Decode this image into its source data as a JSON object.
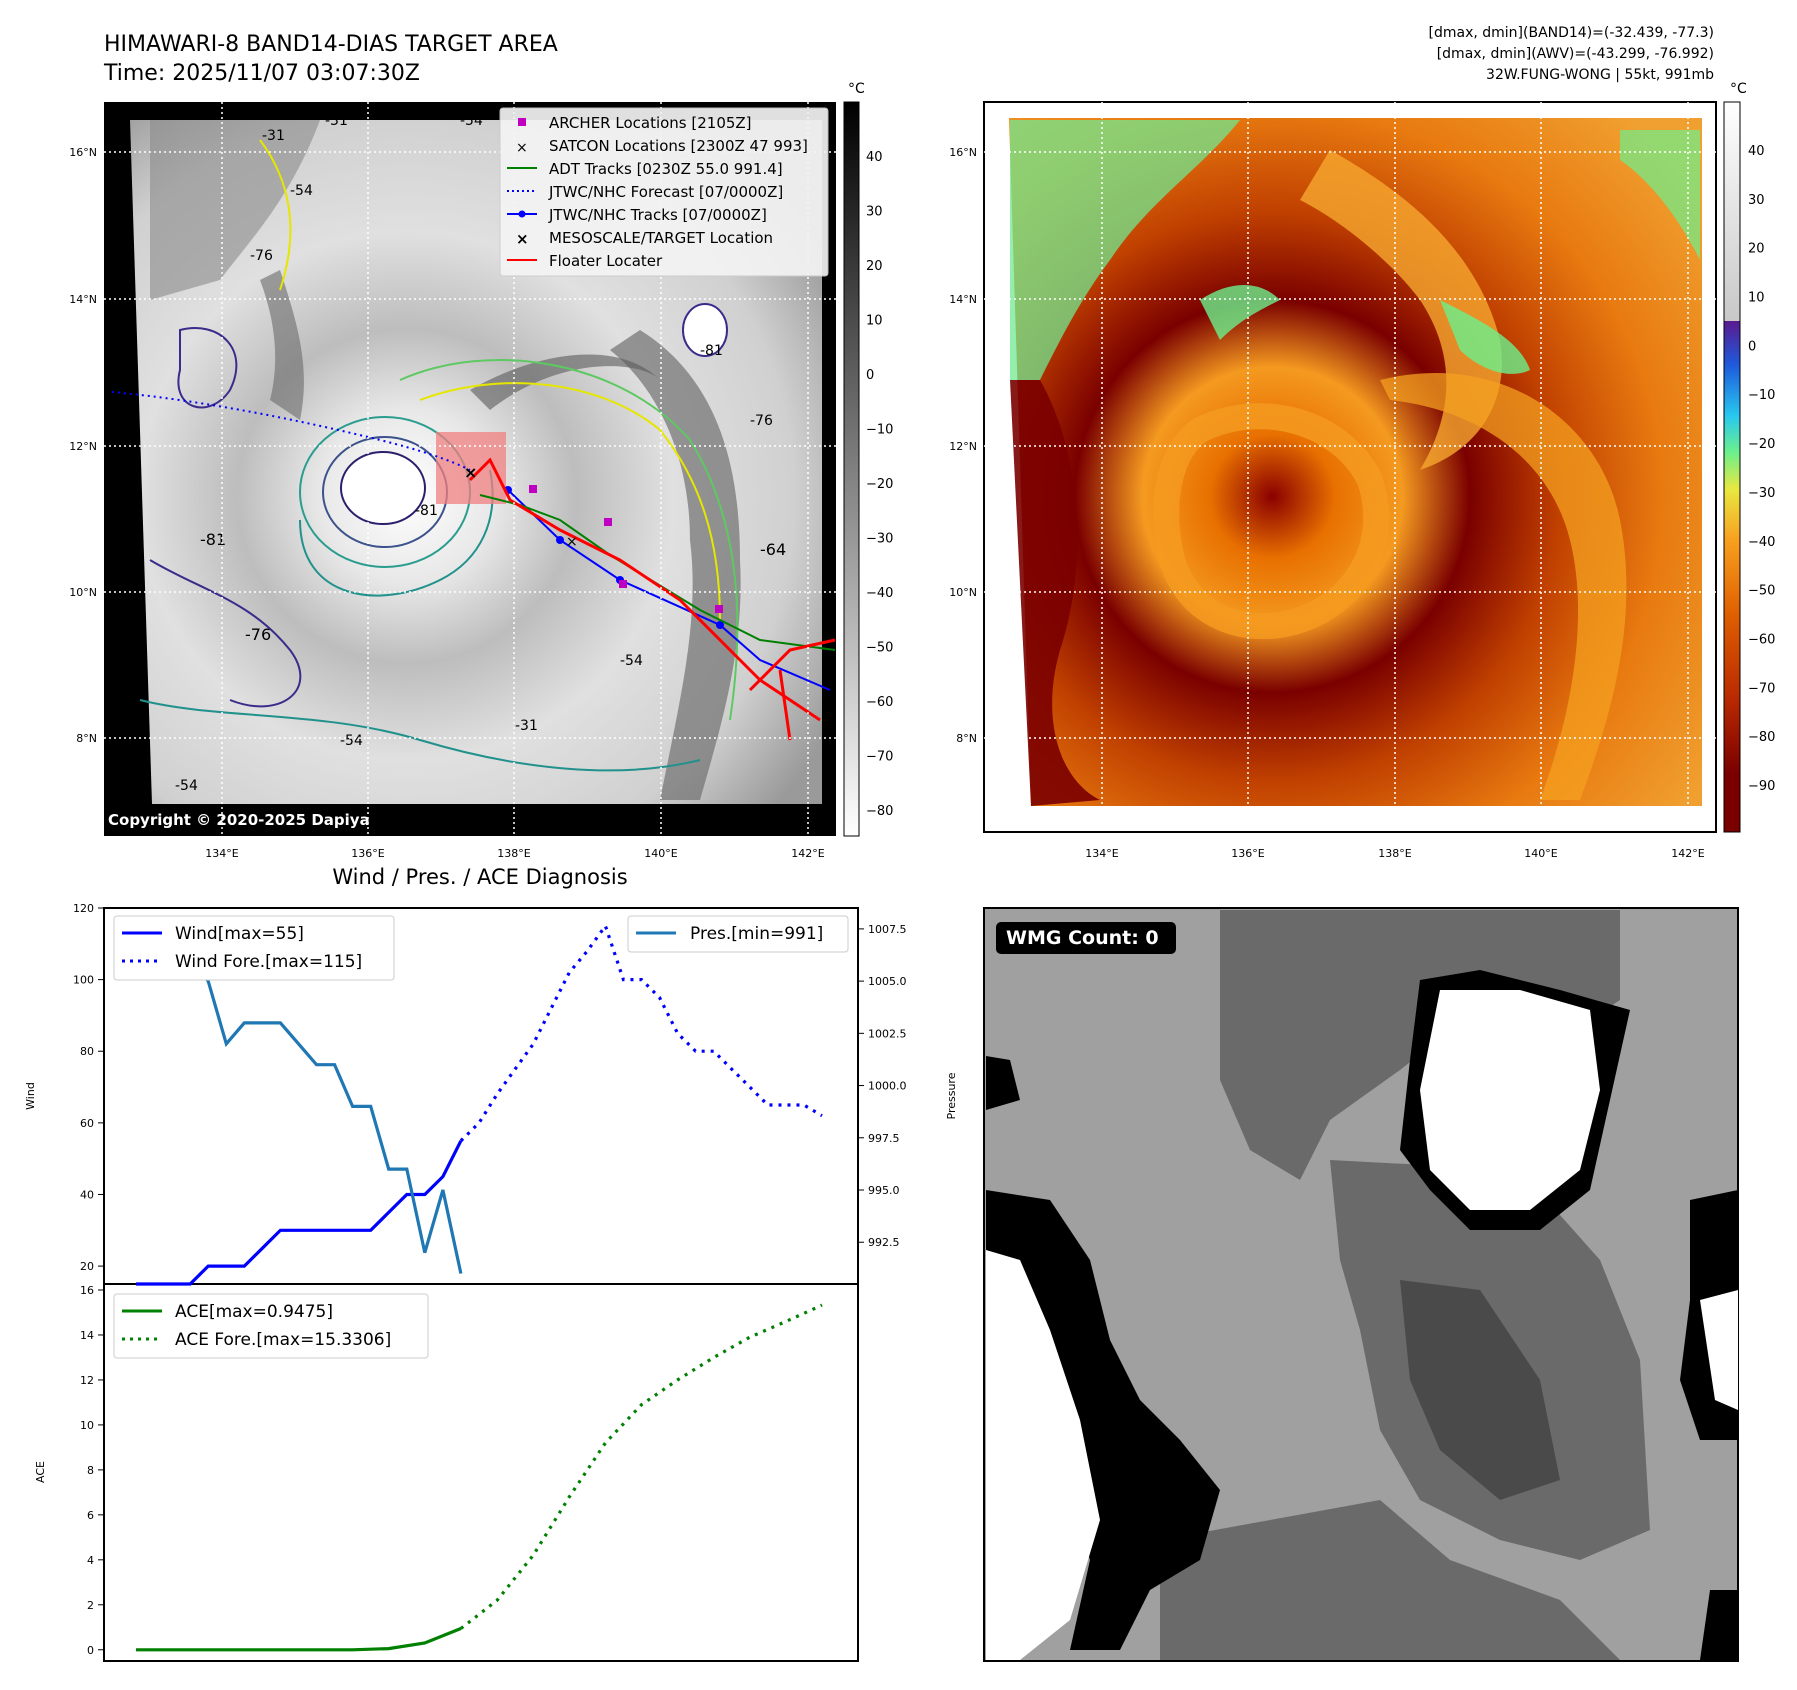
{
  "header": {
    "title_line1": "HIMAWARI-8 BAND14-DIAS TARGET AREA",
    "title_line2": "Time: 2025/11/07 03:07:30Z",
    "info_line1": "[dmax, dmin](BAND14)=(-32.439, -77.3)",
    "info_line2": "[dmax, dmin](AWV)=(-43.299, -76.992)",
    "info_line3": "32W.FUNG-WONG | 55kt, 991mb"
  },
  "map_left": {
    "lat_ticks": [
      "16°N",
      "14°N",
      "12°N",
      "10°N",
      "8°N"
    ],
    "lon_ticks": [
      "134°E",
      "136°E",
      "138°E",
      "140°E",
      "142°E"
    ],
    "colorbar_unit": "°C",
    "colorbar_ticks": [
      "40",
      "30",
      "20",
      "10",
      "0",
      "−10",
      "−20",
      "−30",
      "−40",
      "−50",
      "−60",
      "−70",
      "−80"
    ],
    "copyright": "Copyright © 2020-2025 Dapiya",
    "contour_labels": [
      "-31",
      "-31",
      "-54",
      "-54",
      "-76",
      "-81",
      "-81",
      "-76",
      "-64",
      "-54",
      "-76",
      "-81",
      "-54",
      "-54",
      "-31"
    ],
    "legend": [
      {
        "label": "ARCHER Locations [2105Z]",
        "color": "#c000c0",
        "marker": "square"
      },
      {
        "label": "SATCON Locations [2300Z 47 993]",
        "color": "#00c0c0",
        "marker": "x"
      },
      {
        "label": "ADT Tracks [0230Z 55.0 991.4]",
        "color": "#008000",
        "marker": "line"
      },
      {
        "label": "JTWC/NHC Forecast [07/0000Z]",
        "color": "#0000ff",
        "marker": "dotted"
      },
      {
        "label": "JTWC/NHC Tracks [07/0000Z]",
        "color": "#0000ff",
        "marker": "line-dot"
      },
      {
        "label": "MESOSCALE/TARGET Location",
        "color": "#ff0000",
        "marker": "x"
      },
      {
        "label": "Floater Locater",
        "color": "#ff0000",
        "marker": "line"
      }
    ]
  },
  "map_right": {
    "lat_ticks": [
      "16°N",
      "14°N",
      "12°N",
      "10°N",
      "8°N"
    ],
    "lon_ticks": [
      "134°E",
      "136°E",
      "138°E",
      "140°E",
      "142°E"
    ],
    "colorbar_unit": "°C",
    "colorbar_ticks": [
      "40",
      "30",
      "20",
      "10",
      "0",
      "−10",
      "−20",
      "−30",
      "−40",
      "−50",
      "−60",
      "−70",
      "−80",
      "−90"
    ]
  },
  "wmg": {
    "label": "WMG Count: 0"
  },
  "chart_data": [
    {
      "type": "line",
      "title": "Wind / Pres. / ACE Diagnosis",
      "ylabel": "Wind",
      "ylabel_right": "Pressure",
      "ylim": [
        15,
        120
      ],
      "ylim_right": [
        990.5,
        1008.5
      ],
      "x_index_range": [
        0,
        38
      ],
      "yticks": [
        "120",
        "100",
        "80",
        "60",
        "40",
        "20"
      ],
      "yticks_right": [
        "1007.5",
        "1005.0",
        "1002.5",
        "1000.0",
        "997.5",
        "995.0",
        "992.5"
      ],
      "legend_left": [
        "Wind[max=55]",
        "Wind Fore.[max=115]"
      ],
      "legend_right": [
        "Pres.[min=991]"
      ],
      "series": [
        {
          "name": "Wind[max=55]",
          "axis": "left",
          "color": "#0000ff",
          "style": "solid",
          "x": [
            0,
            1,
            2,
            3,
            4,
            5,
            6,
            7,
            8,
            9,
            10,
            11,
            12,
            13,
            14,
            15,
            16,
            17,
            18
          ],
          "values": [
            15,
            15,
            15,
            15,
            20,
            20,
            20,
            25,
            30,
            30,
            30,
            30,
            30,
            30,
            35,
            40,
            40,
            45,
            55
          ]
        },
        {
          "name": "Wind Fore.[max=115]",
          "axis": "left",
          "color": "#0000ff",
          "style": "dotted",
          "x": [
            18,
            19,
            20,
            21,
            22,
            23,
            24,
            25,
            26,
            27,
            28,
            29,
            30,
            31,
            32,
            33,
            34,
            35,
            36,
            37,
            38
          ],
          "values": [
            55,
            60,
            68,
            75,
            82,
            92,
            102,
            108,
            115,
            100,
            100,
            95,
            85,
            80,
            80,
            75,
            70,
            65,
            65,
            65,
            62
          ]
        },
        {
          "name": "Pres.[min=991]",
          "axis": "right",
          "color": "#1f77b4",
          "style": "solid",
          "x": [
            0,
            1,
            2,
            3,
            4,
            5,
            6,
            7,
            8,
            9,
            10,
            11,
            12,
            13,
            14,
            15,
            16,
            17,
            18
          ],
          "values": [
            1008,
            1006,
            1006,
            1006,
            1005,
            1002,
            1003,
            1003,
            1003,
            1002,
            1001,
            1001,
            999,
            999,
            996,
            996,
            992,
            995,
            991
          ]
        }
      ]
    },
    {
      "type": "line",
      "ylabel": "ACE",
      "ylim": [
        -0.5,
        16
      ],
      "x_index_range": [
        0,
        38
      ],
      "yticks": [
        "16",
        "14",
        "12",
        "10",
        "8",
        "6",
        "4",
        "2",
        "0"
      ],
      "legend": [
        "ACE[max=0.9475]",
        "ACE Fore.[max=15.3306]"
      ],
      "series": [
        {
          "name": "ACE[max=0.9475]",
          "color": "#008000",
          "style": "solid",
          "x": [
            0,
            2,
            4,
            6,
            8,
            10,
            12,
            14,
            16,
            18
          ],
          "values": [
            0,
            0,
            0,
            0,
            0,
            0,
            0,
            0.05,
            0.3,
            0.9475
          ]
        },
        {
          "name": "ACE Fore.[max=15.3306]",
          "color": "#008000",
          "style": "dotted",
          "x": [
            18,
            20,
            22,
            24,
            26,
            28,
            30,
            32,
            34,
            36,
            38
          ],
          "values": [
            0.9475,
            2.2,
            4.2,
            6.8,
            9.2,
            10.9,
            12.0,
            13.0,
            13.9,
            14.6,
            15.3306
          ]
        }
      ]
    }
  ]
}
